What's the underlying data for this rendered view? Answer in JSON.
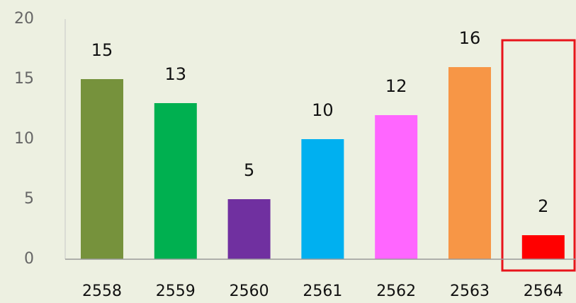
{
  "chart_data": {
    "type": "bar",
    "categories": [
      "2558",
      "2559",
      "2560",
      "2561",
      "2562",
      "2563",
      "2564"
    ],
    "values": [
      15,
      13,
      5,
      10,
      12,
      16,
      2
    ],
    "colors": [
      "#76923c",
      "#00b050",
      "#7030a0",
      "#00b0f0",
      "#ff66ff",
      "#f79646",
      "#ff0000"
    ],
    "ylim": [
      0,
      20
    ],
    "yticks": [
      0,
      5,
      10,
      15,
      20
    ],
    "grid": false
  }
}
